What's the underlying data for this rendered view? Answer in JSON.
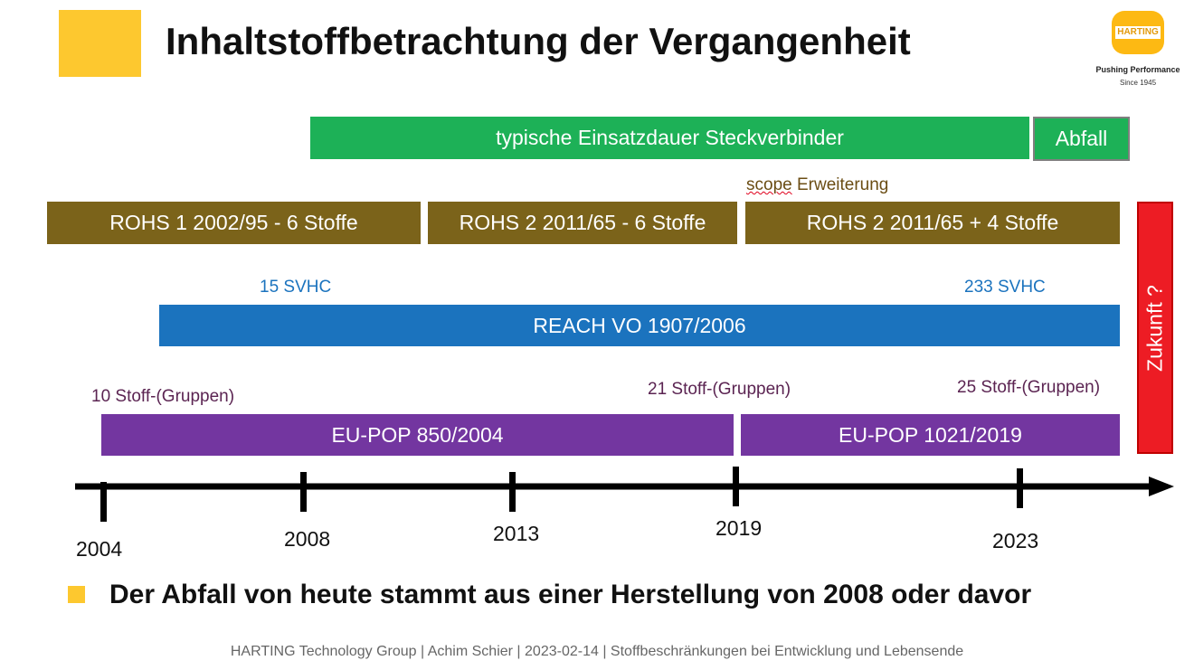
{
  "slide": {
    "title": "Inhaltstoffbetrachtung der Vergangenheit",
    "bullet": "Der Abfall von heute stammt aus einer Herstellung von 2008 oder davor",
    "footer": "HARTING Technology Group | Achim Schier | 2023-02-14 | Stoffbeschränkungen bei Entwicklung und Lebensende"
  },
  "logo": {
    "brand": "HARTING",
    "tagline": "Pushing Performance",
    "since": "Since 1945"
  },
  "bars": {
    "einsatzdauer": "typische Einsatzdauer Steckverbinder",
    "abfall": "Abfall",
    "rohs1": "ROHS 1 2002/95 - 6 Stoffe",
    "rohs2": "ROHS 2 2011/65 - 6 Stoffe",
    "rohs2plus": "ROHS 2 2011/65 + 4 Stoffe",
    "reach": "REACH VO 1907/2006",
    "eupop1": "EU-POP 850/2004",
    "eupop2": "EU-POP 1021/2019",
    "zukunft": "Zukunft ?"
  },
  "labels": {
    "scope_word": "scope",
    "scope_rest": " Erweiterung",
    "svhc_15": "15 SVHC",
    "svhc_233": "233 SVHC",
    "pop_10": "10 Stoff-(Gruppen)",
    "pop_21": "21 Stoff-(Gruppen)",
    "pop_25": "25 Stoff-(Gruppen)"
  },
  "timeline": {
    "years": [
      "2004",
      "2008",
      "2013",
      "2019",
      "2023"
    ]
  },
  "colors": {
    "accent_yellow": "#FDC82F",
    "green": "#1DB157",
    "brown": "#7B631A",
    "blue": "#1B73BE",
    "purple": "#7336A0",
    "red": "#ED1C24"
  }
}
